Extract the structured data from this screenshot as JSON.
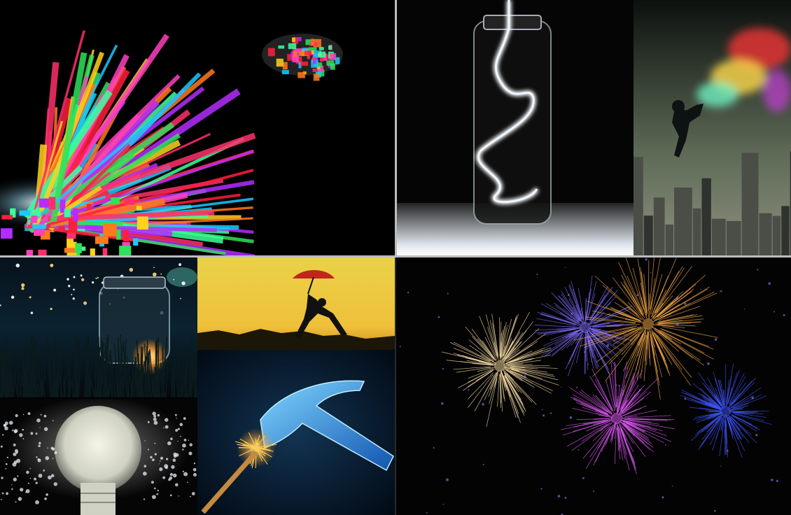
{
  "collage": {
    "tiles": [
      {
        "subject": "color-burst"
      },
      {
        "subject": "light-jar"
      },
      {
        "subject": "smoke-jumper-city"
      },
      {
        "subject": "firefly-jar"
      },
      {
        "subject": "umbrella-jump-sunset"
      },
      {
        "subject": "hammer-match"
      },
      {
        "subject": "fireworks"
      },
      {
        "subject": "light-bulb-splash"
      }
    ]
  }
}
